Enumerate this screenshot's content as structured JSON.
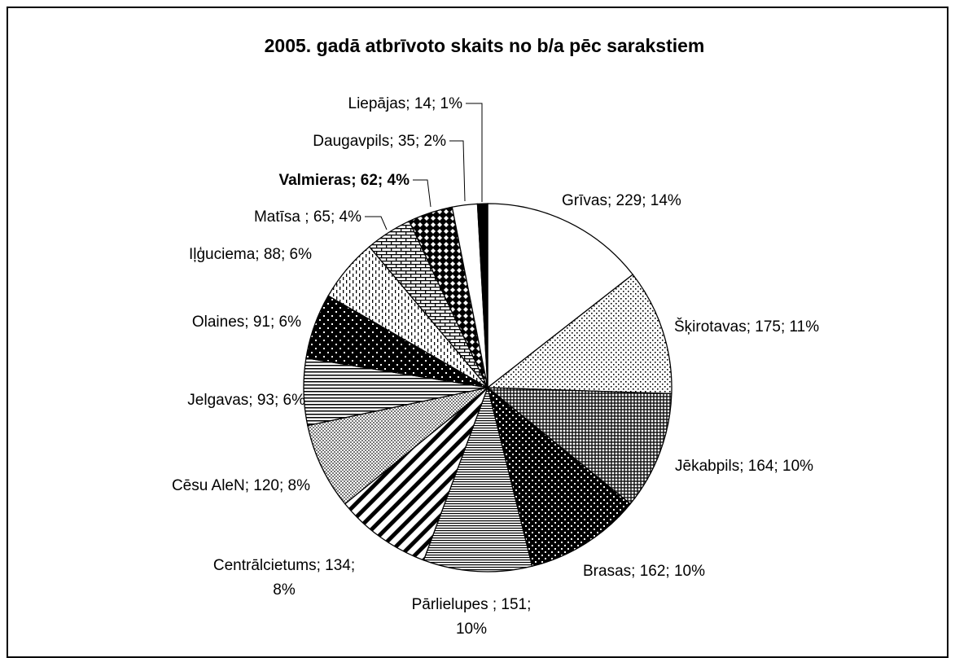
{
  "chart_data": {
    "type": "pie",
    "title": "2005. gadā atbrīvoto skaits no b/a pēc sarakstiem",
    "label_format": "name; value; percent",
    "slices": [
      {
        "name": "Grīvas",
        "value": 229,
        "percent": "14%",
        "label": "Grīvas; 229; 14%",
        "pattern": "white",
        "bold": false
      },
      {
        "name": "Šķirotavas",
        "value": 175,
        "percent": "11%",
        "label": "Šķirotavas; 175; 11%",
        "pattern": "dots-fine",
        "bold": false
      },
      {
        "name": "Jēkabpils",
        "value": 164,
        "percent": "10%",
        "label": "Jēkabpils; 164; 10%",
        "pattern": "grid-dark",
        "bold": false
      },
      {
        "name": "Brasas",
        "value": 162,
        "percent": "10%",
        "label": "Brasas; 162; 10%",
        "pattern": "dots-white-on-black",
        "bold": false
      },
      {
        "name": "Pārlielupes ",
        "value": 151,
        "percent": "10%",
        "label": "Pārlielupes ; 151; 10%",
        "label_lines": [
          "Pārlielupes ; 151;",
          "10%"
        ],
        "pattern": "hlines-fine",
        "bold": false
      },
      {
        "name": "Centrālcietums",
        "value": 134,
        "percent": "8%",
        "label": "Centrālcietums; 134; 8%",
        "label_lines": [
          "Centrālcietums; 134;",
          "8%"
        ],
        "pattern": "diag-wide",
        "bold": false
      },
      {
        "name": "Cēsu AleN",
        "value": 120,
        "percent": "8%",
        "label": "Cēsu AleN; 120; 8%",
        "pattern": "checker",
        "bold": false
      },
      {
        "name": "Jelgavas",
        "value": 93,
        "percent": "6%",
        "label": "Jelgavas; 93; 6%",
        "pattern": "hlines",
        "bold": false
      },
      {
        "name": "Olaines",
        "value": 91,
        "percent": "6%",
        "label": "Olaines; 91; 6%",
        "pattern": "dots-white-on-black-sparse",
        "bold": false
      },
      {
        "name": "Iļģuciema",
        "value": 88,
        "percent": "6%",
        "label": "Iļģuciema; 88; 6%",
        "pattern": "vdash",
        "bold": false
      },
      {
        "name": "Matīsa ",
        "value": 65,
        "percent": "4%",
        "label": "Matīsa ; 65; 4%",
        "pattern": "brick",
        "bold": false
      },
      {
        "name": "Valmieras",
        "value": 62,
        "percent": "4%",
        "label": "Valmieras; 62; 4%",
        "pattern": "diamond",
        "bold": true
      },
      {
        "name": "Daugavpils",
        "value": 35,
        "percent": "2%",
        "label": "Daugavpils; 35; 2%",
        "pattern": "white",
        "bold": false
      },
      {
        "name": "Liepājas",
        "value": 14,
        "percent": "1%",
        "label": "Liepājas; 14; 1%",
        "pattern": "black",
        "bold": false
      }
    ]
  }
}
